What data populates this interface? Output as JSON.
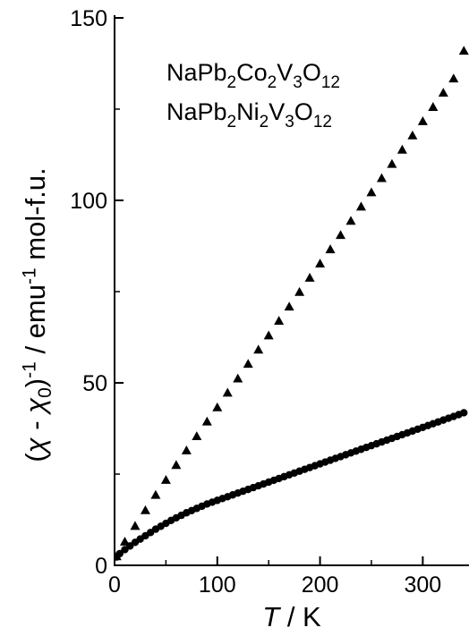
{
  "chart_data": {
    "type": "scatter",
    "title": "",
    "xlabel": {
      "var": "T",
      "sep": " / ",
      "unit": "K"
    },
    "ylabel": "(χ - χ0)-1 / emu-1 mol-f.u.",
    "xlim": [
      0,
      345
    ],
    "ylim": [
      0,
      150
    ],
    "xticks": [
      0,
      100,
      200,
      300
    ],
    "yticks": [
      0,
      50,
      100,
      150
    ],
    "grid": false,
    "legend": [
      {
        "parts": [
          [
            "NaPb",
            false
          ],
          [
            "2",
            true
          ],
          [
            "Co",
            false
          ],
          [
            "2",
            true
          ],
          [
            "V",
            false
          ],
          [
            "3",
            true
          ],
          [
            "O",
            false
          ],
          [
            "12",
            true
          ]
        ]
      },
      {
        "parts": [
          [
            "NaPb",
            false
          ],
          [
            "2",
            true
          ],
          [
            "Ni",
            false
          ],
          [
            "2",
            true
          ],
          [
            "V",
            false
          ],
          [
            "3",
            true
          ],
          [
            "O",
            false
          ],
          [
            "12",
            true
          ]
        ]
      }
    ],
    "series": [
      {
        "marker": "triangle",
        "x": [
          2,
          10,
          20,
          30,
          40,
          50,
          60,
          70,
          80,
          90,
          100,
          110,
          120,
          130,
          140,
          150,
          160,
          170,
          180,
          190,
          200,
          210,
          220,
          230,
          240,
          250,
          260,
          270,
          280,
          290,
          300,
          310,
          320,
          330,
          340
        ],
        "y": [
          2.5,
          6.5,
          10.8,
          15.1,
          19.3,
          23.4,
          27.5,
          31.5,
          35.4,
          39.4,
          43.3,
          47.3,
          51.2,
          55.2,
          59.1,
          63.0,
          67.0,
          70.9,
          74.9,
          78.8,
          82.7,
          86.6,
          90.5,
          94.4,
          98.3,
          102.2,
          106.1,
          110.0,
          113.9,
          117.8,
          121.7,
          125.6,
          129.5,
          133.4,
          141.0
        ]
      },
      {
        "marker": "circle",
        "x": [
          2,
          5,
          10,
          15,
          20,
          25,
          30,
          35,
          40,
          45,
          50,
          55,
          60,
          65,
          70,
          75,
          80,
          85,
          90,
          95,
          100,
          105,
          110,
          115,
          120,
          125,
          130,
          135,
          140,
          145,
          150,
          155,
          160,
          165,
          170,
          175,
          180,
          185,
          190,
          195,
          200,
          205,
          210,
          215,
          220,
          225,
          230,
          235,
          240,
          245,
          250,
          255,
          260,
          265,
          270,
          275,
          280,
          285,
          290,
          295,
          300,
          305,
          310,
          315,
          320,
          325,
          330,
          335,
          340
        ],
        "y": [
          2.3,
          3.2,
          4.3,
          5.3,
          6.3,
          7.2,
          8.1,
          9.0,
          9.9,
          10.7,
          11.5,
          12.3,
          13.0,
          13.7,
          14.4,
          15.0,
          15.6,
          16.2,
          16.8,
          17.3,
          17.8,
          18.3,
          18.8,
          19.3,
          19.8,
          20.3,
          20.8,
          21.3,
          21.8,
          22.3,
          22.8,
          23.3,
          23.8,
          24.3,
          24.8,
          25.3,
          25.8,
          26.3,
          26.8,
          27.3,
          27.8,
          28.3,
          28.8,
          29.3,
          29.8,
          30.3,
          30.8,
          31.3,
          31.8,
          32.3,
          32.8,
          33.3,
          33.8,
          34.3,
          34.8,
          35.3,
          35.8,
          36.3,
          36.8,
          37.3,
          37.8,
          38.3,
          38.8,
          39.3,
          39.8,
          40.3,
          40.8,
          41.3,
          41.8
        ]
      }
    ]
  }
}
